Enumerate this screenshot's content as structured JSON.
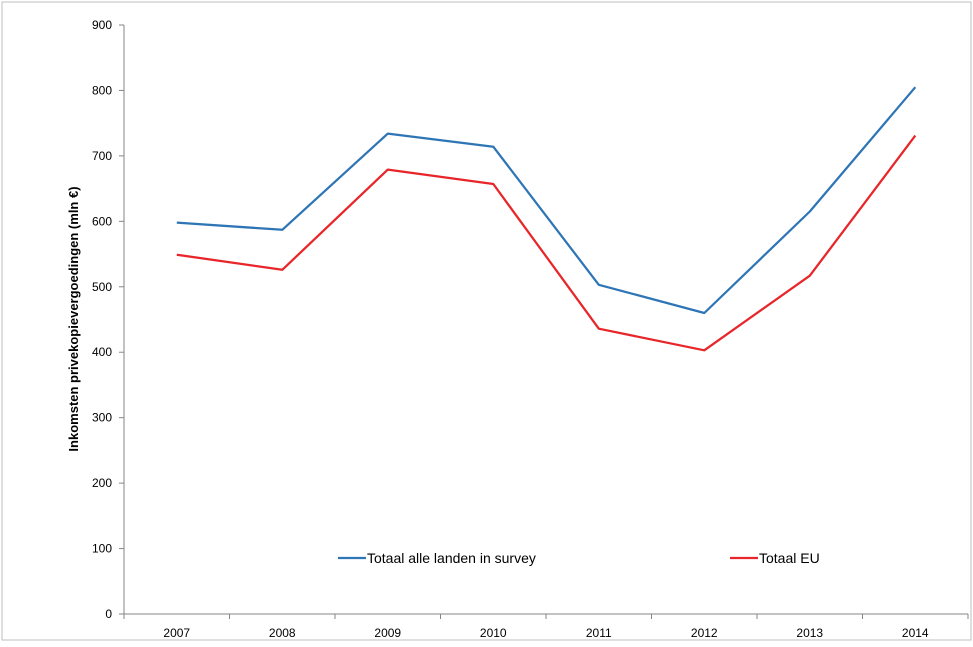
{
  "chart_data": {
    "type": "line",
    "categories": [
      "2007",
      "2008",
      "2009",
      "2010",
      "2011",
      "2012",
      "2013",
      "2014"
    ],
    "series": [
      {
        "name": "Totaal alle landen in survey",
        "color": "#2e75b6",
        "values": [
          598,
          587,
          734,
          714,
          503,
          460,
          615,
          805
        ]
      },
      {
        "name": "Totaal EU",
        "color": "#e8262a",
        "values": [
          549,
          526,
          679,
          657,
          436,
          403,
          517,
          731
        ]
      }
    ],
    "title": "",
    "xlabel": "",
    "ylabel": "Inkomsten privekopievergoedingen (mln €)",
    "ylim": [
      0,
      900
    ],
    "yticks": [
      "0",
      "100",
      "200",
      "300",
      "400",
      "500",
      "600",
      "700",
      "800",
      "900"
    ],
    "grid": false,
    "legend_position": "bottom-inside"
  }
}
